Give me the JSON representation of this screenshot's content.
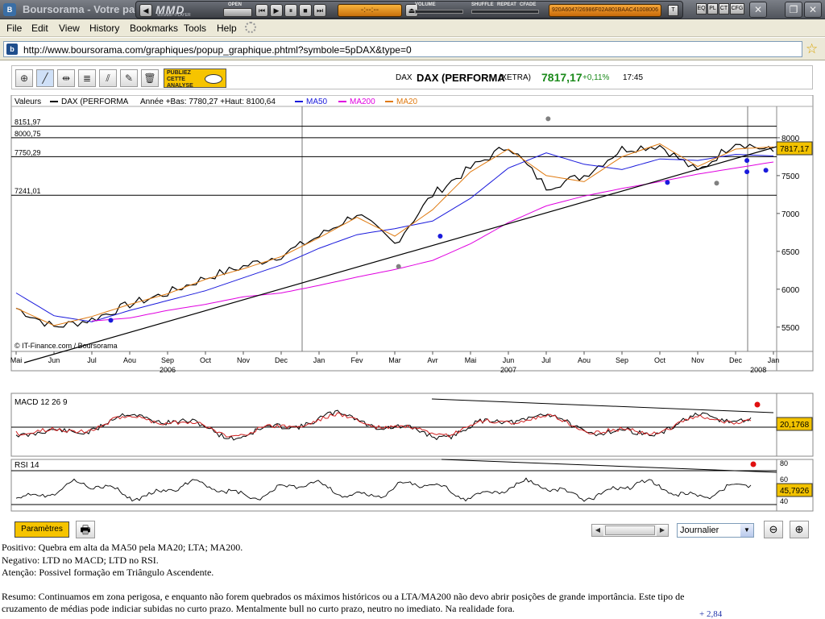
{
  "window": {
    "title": "Boursorama - Votre par"
  },
  "player": {
    "logo": "MMD",
    "logo_sub": "WINAMP-PLAYER",
    "open_label": "OPEN",
    "lcd": "-:--:--",
    "volume_label": "VOLUME",
    "shuffle_label": "SHUFFLE",
    "repeat_label": "REPEAT",
    "cfade_label": "CFADE",
    "ticker": "920A6047/26986F02A801BAAC41008006",
    "toggles": [
      "T",
      "EQ",
      "PL",
      "CT",
      "CFG"
    ]
  },
  "menu": {
    "items": [
      "File",
      "Edit",
      "View",
      "History",
      "Bookmarks",
      "Tools",
      "Help"
    ]
  },
  "address": {
    "url": "http://www.boursorama.com/graphiques/popup_graphique.phtml?symbole=5pDAX&type=0"
  },
  "toolbar": {
    "publiez": [
      "PUBLIEZ",
      "CETTE",
      "ANALYSE"
    ],
    "symbol_small": "DAX",
    "symbol_name": "DAX (PERFORMA",
    "exchange": "(XETRA)",
    "price": "7817,17",
    "change": "+0,11%",
    "time": "17:45"
  },
  "legend": {
    "valeurs": "Valeurs",
    "series_name": "DAX (PERFORMA",
    "stats": "Année +Bas: 7780,27 +Haut: 8100,64",
    "ma50": "MA50",
    "ma200": "MA200",
    "ma20": "MA20"
  },
  "colors": {
    "price": "#000000",
    "ma50": "#1a1adc",
    "ma200": "#e000e0",
    "ma20": "#e07a10",
    "support": "#000000",
    "signal_dot": "#e01010"
  },
  "chart_data": [
    {
      "type": "line",
      "name": "price",
      "ylim": [
        5200,
        8350
      ],
      "y_ticks": [
        5500,
        6000,
        6500,
        7000,
        7500,
        8000
      ],
      "level_lines": [
        8151.97,
        8000.75,
        7750.29,
        7241.01
      ],
      "level_labels": [
        "8151,97",
        "8000,75",
        "7750,29",
        "7241,01"
      ],
      "last_value_label": "7817,17",
      "x_months": [
        "Mai",
        "Jun",
        "Jul",
        "Aou",
        "Sep",
        "Oct",
        "Nov",
        "Dec",
        "Jan",
        "Fev",
        "Mar",
        "Avr",
        "Mai",
        "Jun",
        "Jul",
        "Aou",
        "Sep",
        "Oct",
        "Nov",
        "Dec",
        "Jan"
      ],
      "x_years": [
        "2006",
        "2007",
        "2008"
      ],
      "x": [
        0,
        1,
        2,
        3,
        4,
        5,
        6,
        7,
        8,
        9,
        10,
        11,
        12,
        13,
        14,
        15,
        16,
        17,
        18,
        19,
        20
      ],
      "series": [
        {
          "name": "DAX (PERFORMA",
          "values": [
            5750,
            5500,
            5600,
            5800,
            5950,
            6150,
            6300,
            6450,
            6700,
            7000,
            6600,
            7250,
            7600,
            7900,
            7350,
            7500,
            7850,
            7900,
            7550,
            7950,
            7817
          ]
        },
        {
          "name": "MA50",
          "values": [
            5950,
            5650,
            5570,
            5720,
            5850,
            5980,
            6150,
            6320,
            6540,
            6720,
            6800,
            6900,
            7200,
            7600,
            7800,
            7650,
            7580,
            7720,
            7700,
            7780,
            7760
          ]
        },
        {
          "name": "MA200",
          "values": [
            null,
            null,
            5580,
            5620,
            5720,
            5800,
            5900,
            5950,
            6050,
            6160,
            6260,
            6380,
            6600,
            6880,
            7100,
            7230,
            7330,
            7420,
            7520,
            7600,
            7680
          ]
        },
        {
          "name": "MA20",
          "values": [
            5750,
            5520,
            5640,
            5800,
            5940,
            6130,
            6270,
            6430,
            6680,
            6950,
            6700,
            7050,
            7550,
            7850,
            7500,
            7420,
            7750,
            7920,
            7620,
            7850,
            7880
          ]
        }
      ],
      "annotations": [
        "© IT-Finance.com / Boursorama"
      ]
    },
    {
      "type": "line",
      "name": "MACD",
      "title": "MACD 12 26 9",
      "last_value_label": "20,1768"
    },
    {
      "type": "line",
      "name": "RSI",
      "title": "RSI 14",
      "y_ticks": [
        80,
        60,
        40
      ],
      "last_value_label": "45,7926"
    }
  ],
  "bottom": {
    "param_label": "Paramètres",
    "period": "Journalier"
  },
  "analysis": {
    "positivo": "Positivo: Quebra em alta da MA50 pela MA20; LTA; MA200.",
    "negativo": "Negativo: LTD no MACD; LTD no RSI.",
    "atencao": "Atenção: Possivel formação em Triângulo Ascendente.",
    "resumo1": "Resumo: Continuamos em zona perigosa, e enquanto não forem quebrados os máximos históricos ou a LTA/MA200 não devo abrir posições de grande importância. Este tipo de",
    "resumo2": "cruzamento de médias pode indiciar subidas no curto prazo. Mentalmente bull no curto prazo, neutro no imediato. Na realidade fora.",
    "footer_value": "+ 2,84"
  }
}
